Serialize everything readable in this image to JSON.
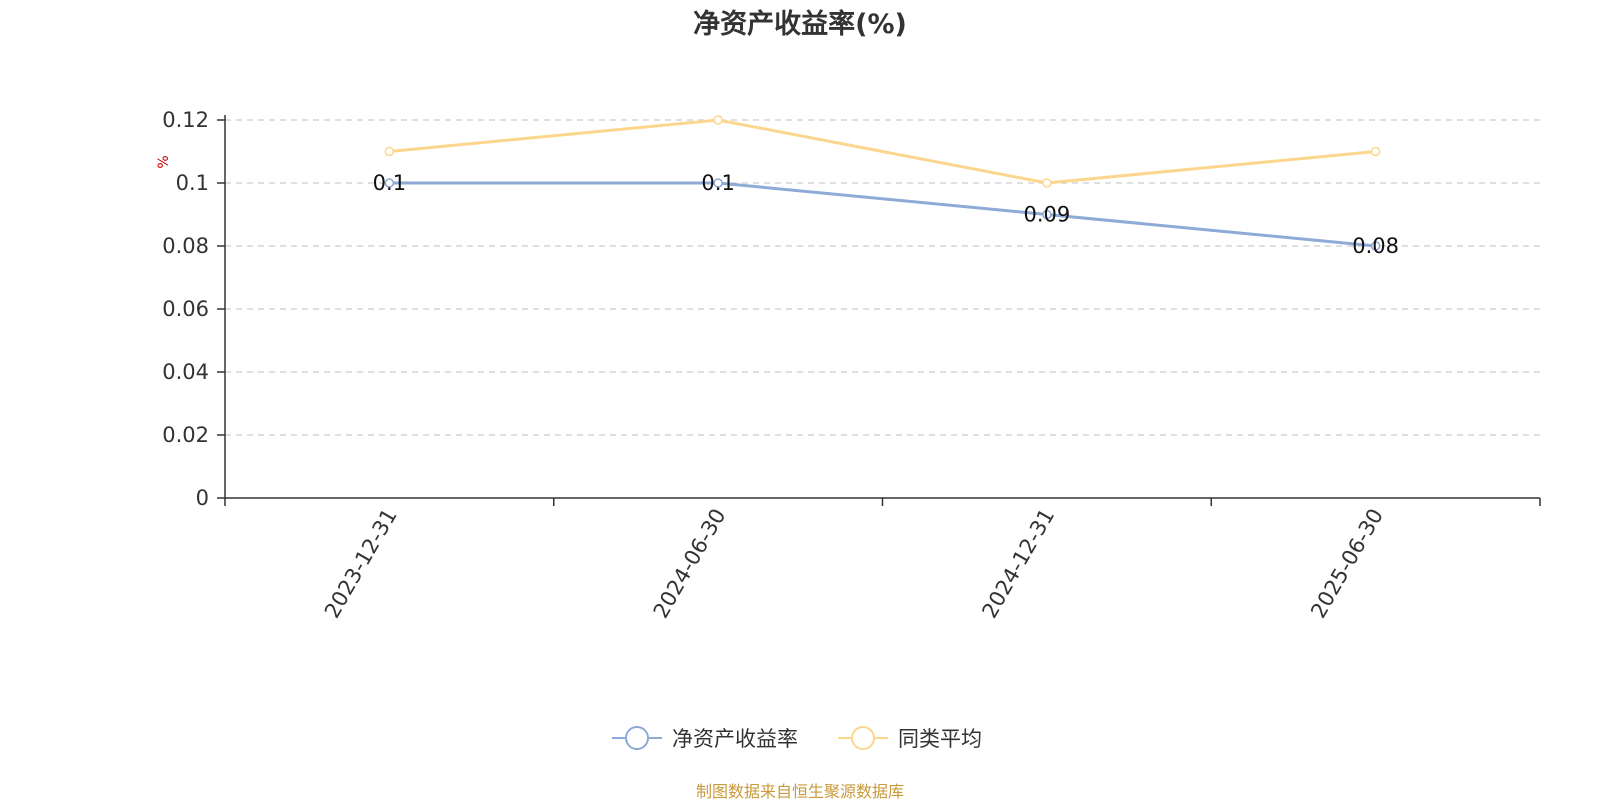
{
  "chart_data": {
    "type": "line",
    "title": "净资产收益率(%)",
    "ylabel": "%",
    "categories": [
      "2023-12-31",
      "2024-06-30",
      "2024-12-31",
      "2025-06-30"
    ],
    "ylim": [
      0,
      0.12
    ],
    "yticks": [
      "0",
      "0.02",
      "0.04",
      "0.06",
      "0.08",
      "0.1",
      "0.12"
    ],
    "grid": "horizontal-dashed",
    "legend_position": "bottom-center",
    "series": [
      {
        "name": "净资产收益率",
        "values": [
          0.1,
          0.1,
          0.09,
          0.08
        ],
        "labels": [
          "0.1",
          "0.1",
          "0.09",
          "0.08"
        ],
        "color": "#8eaad6"
      },
      {
        "name": "同类平均",
        "values": [
          0.11,
          0.12,
          0.1,
          0.11
        ],
        "color": "#fdd68e"
      }
    ]
  },
  "source_text": "制图数据来自恒生聚源数据库"
}
